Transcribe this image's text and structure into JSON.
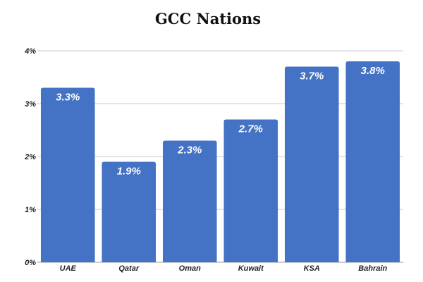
{
  "chart_data": {
    "type": "bar",
    "title": "GCC Nations",
    "categories": [
      "UAE",
      "Qatar",
      "Oman",
      "Kuwait",
      "KSA",
      "Bahrain"
    ],
    "values": [
      3.3,
      1.9,
      2.3,
      2.7,
      3.7,
      3.8
    ],
    "data_labels": [
      "3.3%",
      "1.9%",
      "2.3%",
      "2.7%",
      "3.7%",
      "3.8%"
    ],
    "yticks": [
      {
        "value": 0,
        "label": "0%"
      },
      {
        "value": 1,
        "label": "1%"
      },
      {
        "value": 2,
        "label": "2%"
      },
      {
        "value": 3,
        "label": "3%"
      },
      {
        "value": 4,
        "label": "4%"
      }
    ],
    "ylim": [
      0,
      4
    ],
    "xlabel": "",
    "ylabel": "",
    "grid": true,
    "legend": "none",
    "colors": {
      "bar": "#4472c4",
      "data_label": "#ffffff",
      "grid": "#c8c8c8"
    }
  }
}
